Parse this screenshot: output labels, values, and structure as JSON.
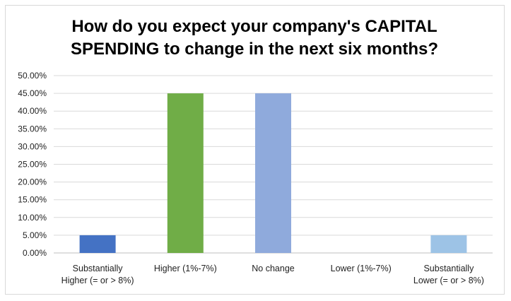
{
  "chart_data": {
    "type": "bar",
    "title_lines": [
      "How do you expect your company's CAPITAL",
      "SPENDING to change in the next six months?"
    ],
    "categories": [
      [
        "Substantially",
        "Higher (= or > 8%)"
      ],
      [
        "Higher (1%-7%)"
      ],
      [
        "No change"
      ],
      [
        "Lower (1%-7%)"
      ],
      [
        "Substantially",
        "Lower (= or > 8%)"
      ]
    ],
    "values": [
      5,
      45,
      45,
      0,
      5
    ],
    "colors": [
      "#4472c4",
      "#70ad47",
      "#8faadc",
      "#a5a5a5",
      "#9dc3e6"
    ],
    "ylim": [
      0,
      50
    ],
    "ytick_step": 5,
    "ytick_labels": [
      "0.00%",
      "5.00%",
      "10.00%",
      "15.00%",
      "20.00%",
      "25.00%",
      "30.00%",
      "35.00%",
      "40.00%",
      "45.00%",
      "50.00%"
    ],
    "grid": true,
    "xlabel": "",
    "ylabel": ""
  }
}
